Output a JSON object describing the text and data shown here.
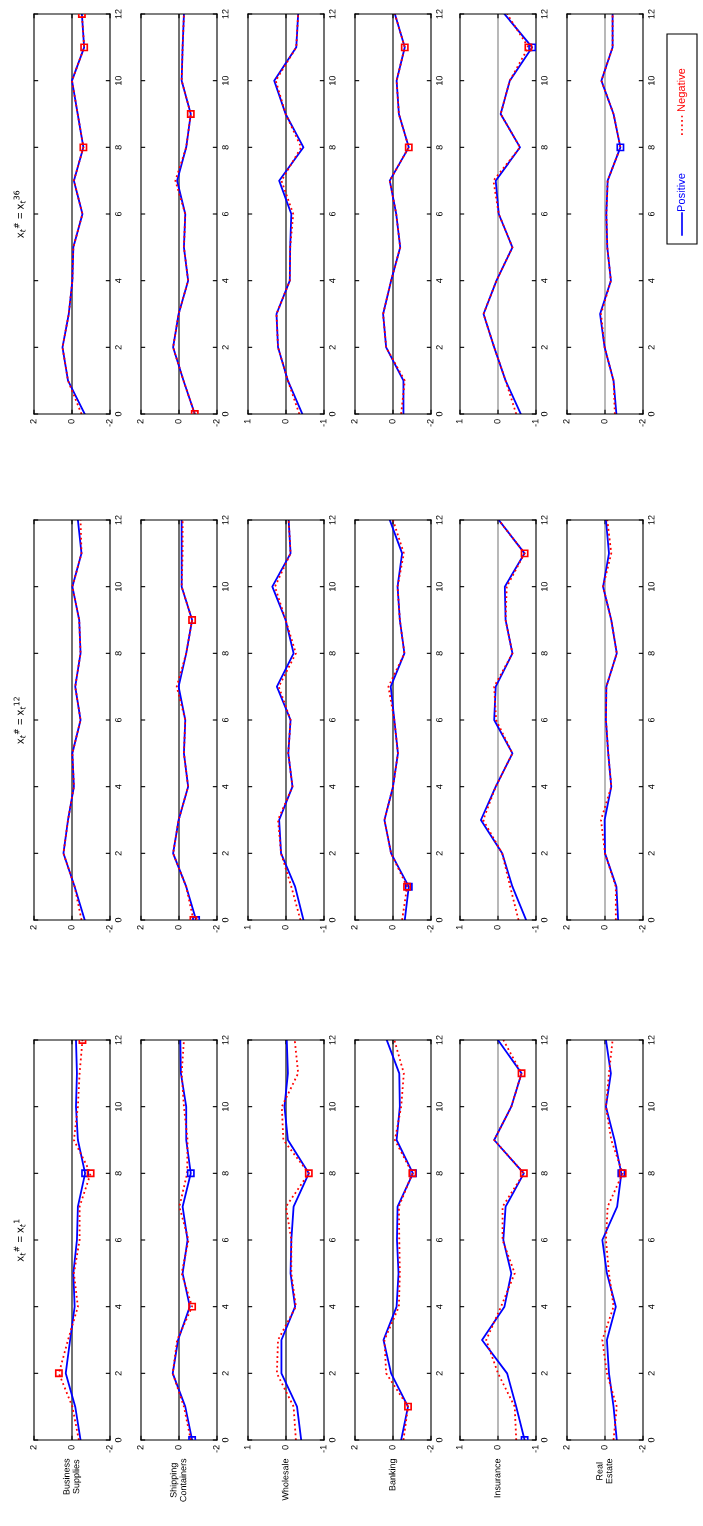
{
  "chart_data": [
    {
      "type": "line",
      "title": "x$_{t}$$^{#}$ = x$_{t}$$^{36}$",
      "xlim": [
        2,
        -2
      ],
      "xticks": [
        -2,
        0,
        2
      ],
      "ylim": [
        0,
        12
      ],
      "yticks": [
        0,
        2,
        4,
        6,
        8,
        10,
        12
      ],
      "ref_lines": [
        {
          "axis": "x",
          "value": 0,
          "color": "#000000"
        }
      ],
      "series": [
        {
          "color": "#0000ff",
          "line_style": "solid",
          "x": [
            -0.67,
            0.21,
            0.5,
            0.17,
            -0.02,
            -0.07,
            -0.55,
            -0.1,
            -0.6,
            -0.3,
            0,
            -0.64,
            -0.52
          ],
          "values": [
            0,
            1,
            2,
            3,
            4,
            5,
            6,
            7,
            8,
            9,
            10,
            11,
            12
          ]
        },
        {
          "color": "#ff0000",
          "line_style": "dotted",
          "x": [
            -0.5,
            0.21,
            0.5,
            0.17,
            -0.02,
            -0.07,
            -0.55,
            -0.1,
            -0.6,
            -0.3,
            0,
            -0.64,
            -0.52
          ],
          "values": [
            0,
            1,
            2,
            3,
            4,
            5,
            6,
            7,
            8,
            9,
            10,
            11,
            12
          ]
        },
        {
          "type": "scatter",
          "marker": "square",
          "color": "#ff0000",
          "x": [
            -0.6,
            -0.64,
            -0.52
          ],
          "values": [
            8,
            11,
            12
          ]
        }
      ]
    },
    {
      "type": "line",
      "xlim": [
        2,
        -2
      ],
      "xticks": [
        -2,
        0,
        2
      ],
      "ylim": [
        0,
        12
      ],
      "yticks": [
        0,
        2,
        4,
        6,
        8,
        10,
        12
      ],
      "ref_lines": [
        {
          "axis": "x",
          "value": 0,
          "color": "#000000"
        }
      ],
      "series": [
        {
          "color": "#0000ff",
          "line_style": "solid",
          "x": [
            -0.83,
            -0.24,
            0.31,
            0.02,
            -0.48,
            -0.26,
            -0.33,
            0.1,
            -0.38,
            -0.62,
            -0.14,
            -0.19,
            -0.26
          ],
          "values": [
            0,
            1,
            2,
            3,
            4,
            5,
            6,
            7,
            8,
            9,
            10,
            11,
            12
          ]
        },
        {
          "color": "#ff0000",
          "line_style": "dotted",
          "x": [
            -0.83,
            -0.24,
            0.31,
            0.02,
            -0.48,
            -0.26,
            -0.33,
            0.19,
            -0.38,
            -0.62,
            -0.14,
            -0.19,
            -0.26
          ],
          "values": [
            0,
            1,
            2,
            3,
            4,
            5,
            6,
            7,
            8,
            9,
            10,
            11,
            12
          ]
        },
        {
          "type": "scatter",
          "marker": "square",
          "color": "#ff0000",
          "x": [
            -0.83,
            -0.62
          ],
          "values": [
            0,
            9
          ]
        }
      ]
    },
    {
      "type": "line",
      "xlim": [
        1,
        -1
      ],
      "xticks": [
        -1,
        0,
        1
      ],
      "ylim": [
        0,
        12
      ],
      "yticks": [
        0,
        2,
        4,
        6,
        8,
        10,
        12
      ],
      "ref_lines": [
        {
          "axis": "x",
          "value": 0,
          "color": "#000000"
        }
      ],
      "series": [
        {
          "color": "#0000ff",
          "line_style": "solid",
          "x": [
            -0.43,
            -0.05,
            0.21,
            0.25,
            -0.1,
            -0.11,
            -0.14,
            0.18,
            -0.46,
            0.01,
            0.31,
            -0.27,
            -0.32
          ],
          "values": [
            0,
            1,
            2,
            3,
            4,
            5,
            6,
            7,
            8,
            9,
            10,
            11,
            12
          ]
        },
        {
          "color": "#ff0000",
          "line_style": "dotted",
          "x": [
            -0.35,
            -0.05,
            0.21,
            0.25,
            -0.1,
            -0.11,
            -0.19,
            0.12,
            -0.4,
            0.01,
            0.27,
            -0.27,
            -0.32
          ],
          "values": [
            0,
            1,
            2,
            3,
            4,
            5,
            6,
            7,
            8,
            9,
            10,
            11,
            12
          ]
        }
      ]
    },
    {
      "type": "line",
      "xlim": [
        2,
        -2
      ],
      "xticks": [
        -2,
        0,
        2
      ],
      "ylim": [
        0,
        12
      ],
      "yticks": [
        0,
        2,
        4,
        6,
        8,
        10,
        12
      ],
      "ref_lines": [
        {
          "axis": "x",
          "value": 0,
          "color": "#000000"
        }
      ],
      "series": [
        {
          "color": "#0000ff",
          "line_style": "solid",
          "x": [
            -0.55,
            -0.55,
            0.36,
            0.52,
            0.1,
            -0.38,
            -0.17,
            0.17,
            -0.83,
            -0.31,
            -0.19,
            -0.62,
            -0.1
          ],
          "values": [
            0,
            1,
            2,
            3,
            4,
            5,
            6,
            7,
            8,
            9,
            10,
            11,
            12
          ]
        },
        {
          "color": "#ff0000",
          "line_style": "dotted",
          "x": [
            -0.43,
            -0.62,
            0.36,
            0.52,
            0.1,
            -0.38,
            -0.17,
            0.17,
            -0.83,
            -0.31,
            -0.19,
            -0.62,
            -0.1
          ],
          "values": [
            0,
            1,
            2,
            3,
            4,
            5,
            6,
            7,
            8,
            9,
            10,
            11,
            12
          ]
        },
        {
          "type": "scatter",
          "marker": "square",
          "color": "#ff0000",
          "x": [
            -0.83,
            -0.62
          ],
          "values": [
            8,
            11
          ]
        }
      ]
    },
    {
      "type": "line",
      "xlim": [
        1,
        -1
      ],
      "xticks": [
        -1,
        0,
        1
      ],
      "ylim": [
        0,
        12
      ],
      "yticks": [
        0,
        2,
        4,
        6,
        8,
        10,
        12
      ],
      "ref_lines": [
        {
          "axis": "x",
          "value": 0,
          "color": "#808080"
        }
      ],
      "series": [
        {
          "color": "#0000ff",
          "line_style": "solid",
          "x": [
            -0.6,
            -0.2,
            0.1,
            0.38,
            0.04,
            -0.38,
            -0.02,
            0.06,
            -0.58,
            -0.07,
            -0.31,
            -0.9,
            -0.17
          ],
          "values": [
            0,
            1,
            2,
            3,
            4,
            5,
            6,
            7,
            8,
            9,
            10,
            11,
            12
          ]
        },
        {
          "color": "#ff0000",
          "line_style": "dotted",
          "x": [
            -0.48,
            -0.2,
            0.1,
            0.38,
            0.04,
            -0.38,
            -0.02,
            0.12,
            -0.58,
            -0.07,
            -0.31,
            -0.8,
            -0.24
          ],
          "values": [
            0,
            1,
            2,
            3,
            4,
            5,
            6,
            7,
            8,
            9,
            10,
            11,
            12
          ]
        },
        {
          "type": "scatter",
          "marker": "square",
          "color": "#0000ff",
          "x": [
            -0.9
          ],
          "values": [
            11
          ]
        },
        {
          "type": "scatter",
          "marker": "square",
          "color": "#ff0000",
          "x": [
            -0.8
          ],
          "values": [
            11
          ]
        }
      ]
    },
    {
      "type": "line",
      "legend": "right",
      "xlim": [
        2,
        -2
      ],
      "xticks": [
        -2,
        0,
        2
      ],
      "ylim": [
        0,
        12
      ],
      "yticks": [
        0,
        2,
        4,
        6,
        8,
        10,
        12
      ],
      "ref_lines": [
        {
          "axis": "x",
          "value": 0,
          "color": "#808080"
        }
      ],
      "series": [
        {
          "name": "Positive",
          "color": "#0000ff",
          "line_style": "solid",
          "x": [
            -0.6,
            -0.45,
            0.02,
            0.26,
            -0.31,
            -0.12,
            -0.07,
            -0.14,
            -0.81,
            -0.45,
            0.19,
            -0.4,
            -0.4
          ],
          "values": [
            0,
            1,
            2,
            3,
            4,
            5,
            6,
            7,
            8,
            9,
            10,
            11,
            12
          ]
        },
        {
          "name": "Negative",
          "color": "#ff0000",
          "line_style": "dotted",
          "x": [
            -0.52,
            -0.45,
            0.02,
            0.21,
            -0.31,
            -0.12,
            -0.07,
            -0.14,
            -0.81,
            -0.45,
            0.19,
            -0.4,
            -0.4
          ],
          "values": [
            0,
            1,
            2,
            3,
            4,
            5,
            6,
            7,
            8,
            9,
            10,
            11,
            12
          ]
        },
        {
          "type": "scatter",
          "marker": "square",
          "color": "#0000ff",
          "x": [
            -0.81
          ],
          "values": [
            8
          ]
        }
      ]
    },
    {
      "type": "line",
      "title": "x$_{t}$$^{#}$ = x$_{t}$$^{12}$",
      "xlim": [
        2,
        -2
      ],
      "xticks": [
        -2,
        0,
        2
      ],
      "ylim": [
        0,
        12
      ],
      "yticks": [
        0,
        2,
        4,
        6,
        8,
        10,
        12
      ],
      "ref_lines": [
        {
          "axis": "x",
          "value": 0,
          "color": "#000000"
        }
      ],
      "series": [
        {
          "color": "#0000ff",
          "line_style": "solid",
          "x": [
            -0.67,
            -0.14,
            0.45,
            0.21,
            -0.1,
            -0.02,
            -0.45,
            -0.17,
            -0.45,
            -0.38,
            -0.02,
            -0.5,
            -0.31
          ],
          "values": [
            0,
            1,
            2,
            3,
            4,
            5,
            6,
            7,
            8,
            9,
            10,
            11,
            12
          ]
        },
        {
          "color": "#ff0000",
          "line_style": "dotted",
          "x": [
            -0.5,
            -0.14,
            0.45,
            0.21,
            -0.1,
            -0.02,
            -0.45,
            -0.17,
            -0.45,
            -0.38,
            -0.02,
            -0.5,
            -0.45
          ],
          "values": [
            0,
            1,
            2,
            3,
            4,
            5,
            6,
            7,
            8,
            9,
            10,
            11,
            12
          ]
        }
      ]
    },
    {
      "type": "line",
      "xlim": [
        2,
        -2
      ],
      "xticks": [
        -2,
        0,
        2
      ],
      "ylim": [
        0,
        12
      ],
      "yticks": [
        0,
        2,
        4,
        6,
        8,
        10,
        12
      ],
      "ref_lines": [
        {
          "axis": "x",
          "value": 0,
          "color": "#000000"
        }
      ],
      "series": [
        {
          "color": "#0000ff",
          "line_style": "solid",
          "x": [
            -0.9,
            -0.38,
            0.31,
            0.02,
            -0.48,
            -0.26,
            -0.33,
            0.02,
            -0.38,
            -0.69,
            -0.14,
            -0.14,
            -0.14
          ],
          "values": [
            0,
            1,
            2,
            3,
            4,
            5,
            6,
            7,
            8,
            9,
            10,
            11,
            12
          ]
        },
        {
          "color": "#ff0000",
          "line_style": "dotted",
          "x": [
            -0.76,
            -0.38,
            0.31,
            0.02,
            -0.48,
            -0.26,
            -0.33,
            0.12,
            -0.38,
            -0.69,
            -0.14,
            -0.19,
            -0.19
          ],
          "values": [
            0,
            1,
            2,
            3,
            4,
            5,
            6,
            7,
            8,
            9,
            10,
            11,
            12
          ]
        },
        {
          "type": "scatter",
          "marker": "square",
          "color": "#0000ff",
          "x": [
            -0.9
          ],
          "values": [
            0
          ]
        },
        {
          "type": "scatter",
          "marker": "square",
          "color": "#ff0000",
          "x": [
            -0.76,
            -0.69
          ],
          "values": [
            0,
            9
          ]
        }
      ]
    },
    {
      "type": "line",
      "xlim": [
        1,
        -1
      ],
      "xticks": [
        -1,
        0,
        1
      ],
      "ylim": [
        0,
        12
      ],
      "yticks": [
        0,
        2,
        4,
        6,
        8,
        10,
        12
      ],
      "ref_lines": [
        {
          "axis": "x",
          "value": 0,
          "color": "#000000"
        }
      ],
      "series": [
        {
          "color": "#0000ff",
          "line_style": "solid",
          "x": [
            -0.46,
            -0.24,
            0.13,
            0.18,
            -0.17,
            -0.06,
            -0.12,
            0.24,
            -0.2,
            0.01,
            0.36,
            -0.12,
            -0.07
          ],
          "values": [
            0,
            1,
            2,
            3,
            4,
            5,
            6,
            7,
            8,
            9,
            10,
            11,
            12
          ]
        },
        {
          "color": "#ff0000",
          "line_style": "dotted",
          "x": [
            -0.38,
            -0.14,
            0.13,
            0.21,
            -0.17,
            -0.06,
            -0.12,
            0.19,
            -0.26,
            0.01,
            0.29,
            -0.12,
            -0.07
          ],
          "values": [
            0,
            1,
            2,
            3,
            4,
            5,
            6,
            7,
            8,
            9,
            10,
            11,
            12
          ]
        }
      ]
    },
    {
      "type": "line",
      "xlim": [
        2,
        -2
      ],
      "xticks": [
        -2,
        0,
        2
      ],
      "ylim": [
        0,
        12
      ],
      "yticks": [
        0,
        2,
        4,
        6,
        8,
        10,
        12
      ],
      "ref_lines": [
        {
          "axis": "x",
          "value": 0,
          "color": "#000000"
        }
      ],
      "series": [
        {
          "color": "#0000ff",
          "line_style": "solid",
          "x": [
            -0.62,
            -0.83,
            0.1,
            0.45,
            0,
            -0.26,
            -0.07,
            0.12,
            -0.6,
            -0.36,
            -0.24,
            -0.48,
            0.17
          ],
          "values": [
            0,
            1,
            2,
            3,
            4,
            5,
            6,
            7,
            8,
            9,
            10,
            11,
            12
          ]
        },
        {
          "color": "#ff0000",
          "line_style": "dotted",
          "x": [
            -0.48,
            -0.74,
            0.1,
            0.45,
            0,
            -0.26,
            -0.07,
            0.24,
            -0.6,
            -0.36,
            -0.24,
            -0.57,
            0
          ],
          "values": [
            0,
            1,
            2,
            3,
            4,
            5,
            6,
            7,
            8,
            9,
            10,
            11,
            12
          ]
        },
        {
          "type": "scatter",
          "marker": "square",
          "color": "#0000ff",
          "x": [
            -0.83
          ],
          "values": [
            1
          ]
        },
        {
          "type": "scatter",
          "marker": "square",
          "color": "#ff0000",
          "x": [
            -0.74
          ],
          "values": [
            1
          ]
        }
      ]
    },
    {
      "type": "line",
      "xlim": [
        1,
        -1
      ],
      "xticks": [
        -1,
        0,
        1
      ],
      "ylim": [
        0,
        12
      ],
      "yticks": [
        0,
        2,
        4,
        6,
        8,
        10,
        12
      ],
      "ref_lines": [
        {
          "axis": "x",
          "value": 0,
          "color": "#808080"
        }
      ],
      "series": [
        {
          "color": "#0000ff",
          "line_style": "solid",
          "x": [
            -0.74,
            -0.38,
            -0.11,
            0.45,
            0.06,
            -0.38,
            0.1,
            0.06,
            -0.38,
            -0.2,
            -0.18,
            -0.7,
            -0.02
          ],
          "values": [
            0,
            1,
            2,
            3,
            4,
            5,
            6,
            7,
            8,
            9,
            10,
            11,
            12
          ]
        },
        {
          "color": "#ff0000",
          "line_style": "dotted",
          "x": [
            -0.54,
            -0.32,
            -0.11,
            0.39,
            0.06,
            -0.38,
            0.05,
            0.1,
            -0.38,
            -0.2,
            -0.23,
            -0.7,
            -0.02
          ],
          "values": [
            0,
            1,
            2,
            3,
            4,
            5,
            6,
            7,
            8,
            9,
            10,
            11,
            12
          ]
        },
        {
          "type": "scatter",
          "marker": "square",
          "color": "#ff0000",
          "x": [
            -0.7
          ],
          "values": [
            11
          ]
        }
      ]
    },
    {
      "type": "line",
      "xlim": [
        2,
        -2
      ],
      "xticks": [
        -2,
        0,
        2
      ],
      "ylim": [
        0,
        12
      ],
      "yticks": [
        0,
        2,
        4,
        6,
        8,
        10,
        12
      ],
      "ref_lines": [
        {
          "axis": "x",
          "value": 0,
          "color": "#808080"
        }
      ],
      "series": [
        {
          "color": "#0000ff",
          "line_style": "solid",
          "x": [
            -0.69,
            -0.6,
            0,
            0.02,
            -0.33,
            -0.17,
            -0.05,
            -0.07,
            -0.62,
            -0.33,
            0.1,
            -0.21,
            -0.05
          ],
          "values": [
            0,
            1,
            2,
            3,
            4,
            5,
            6,
            7,
            8,
            9,
            10,
            11,
            12
          ]
        },
        {
          "color": "#ff0000",
          "line_style": "dotted",
          "x": [
            -0.57,
            -0.57,
            0,
            0.21,
            -0.33,
            -0.17,
            -0.05,
            -0.07,
            -0.62,
            -0.33,
            0.1,
            -0.33,
            -0.12
          ],
          "values": [
            0,
            1,
            2,
            3,
            4,
            5,
            6,
            7,
            8,
            9,
            10,
            11,
            12
          ]
        }
      ]
    },
    {
      "type": "line",
      "title": "x$_{t}$$^{#}$ = x$_{t}$$^{1}$",
      "ylabel": "Business\nSupplies",
      "xlim": [
        2,
        -2
      ],
      "xticks": [
        -2,
        0,
        2
      ],
      "ylim": [
        0,
        12
      ],
      "yticks": [
        0,
        2,
        4,
        6,
        8,
        10,
        12
      ],
      "ref_lines": [
        {
          "axis": "x",
          "value": 0,
          "color": "#000000"
        }
      ],
      "series": [
        {
          "color": "#0000ff",
          "line_style": "solid",
          "x": [
            -0.45,
            -0.17,
            0.33,
            0.1,
            -0.14,
            -0.07,
            -0.26,
            -0.31,
            -0.69,
            -0.31,
            -0.21,
            -0.26,
            -0.21
          ],
          "values": [
            0,
            1,
            2,
            3,
            4,
            5,
            6,
            7,
            8,
            9,
            10,
            11,
            12
          ]
        },
        {
          "color": "#ff0000",
          "line_style": "dotted",
          "x": [
            -0.36,
            -0.02,
            0.69,
            0.21,
            -0.31,
            -0.1,
            -0.4,
            -0.4,
            -0.98,
            -0.1,
            -0.31,
            -0.4,
            -0.55
          ],
          "values": [
            0,
            1,
            2,
            3,
            4,
            5,
            6,
            7,
            8,
            9,
            10,
            11,
            12
          ]
        },
        {
          "type": "scatter",
          "marker": "square",
          "color": "#0000ff",
          "x": [
            -0.69
          ],
          "values": [
            8
          ]
        },
        {
          "type": "scatter",
          "marker": "square",
          "color": "#ff0000",
          "x": [
            0.69,
            -0.98,
            -0.55
          ],
          "values": [
            2,
            8,
            12
          ]
        }
      ]
    },
    {
      "type": "line",
      "ylabel": "Shipping\nContainers",
      "xlim": [
        2,
        -2
      ],
      "xticks": [
        -2,
        0,
        2
      ],
      "ylim": [
        0,
        12
      ],
      "yticks": [
        0,
        2,
        4,
        6,
        8,
        10,
        12
      ],
      "ref_lines": [
        {
          "axis": "x",
          "value": 0,
          "color": "#000000"
        }
      ],
      "series": [
        {
          "color": "#0000ff",
          "line_style": "solid",
          "x": [
            -0.69,
            -0.33,
            0.33,
            0.05,
            -0.57,
            -0.19,
            -0.45,
            -0.19,
            -0.62,
            -0.38,
            -0.38,
            -0.1,
            -0.07
          ],
          "values": [
            0,
            1,
            2,
            3,
            4,
            5,
            6,
            7,
            8,
            9,
            10,
            11,
            12
          ]
        },
        {
          "color": "#ff0000",
          "line_style": "dotted",
          "x": [
            -0.62,
            -0.26,
            0.33,
            0.1,
            -0.69,
            -0.14,
            -0.5,
            -0.02,
            -0.43,
            -0.45,
            -0.26,
            -0.14,
            -0.26
          ],
          "values": [
            0,
            1,
            2,
            3,
            4,
            5,
            6,
            7,
            8,
            9,
            10,
            11,
            12
          ]
        },
        {
          "type": "scatter",
          "marker": "square",
          "color": "#0000ff",
          "x": [
            -0.69,
            -0.62
          ],
          "values": [
            0,
            8
          ]
        },
        {
          "type": "scatter",
          "marker": "square",
          "color": "#ff0000",
          "x": [
            -0.69
          ],
          "values": [
            4
          ]
        }
      ]
    },
    {
      "type": "line",
      "ylabel": "Wholesale",
      "xlim": [
        1,
        -1
      ],
      "xticks": [
        -1,
        0,
        1
      ],
      "ylim": [
        0,
        12
      ],
      "yticks": [
        0,
        2,
        4,
        6,
        8,
        10,
        12
      ],
      "ref_lines": [
        {
          "axis": "x",
          "value": 0,
          "color": "#000000"
        }
      ],
      "series": [
        {
          "color": "#0000ff",
          "line_style": "solid",
          "x": [
            -0.4,
            -0.29,
            0.12,
            0.12,
            -0.24,
            -0.12,
            -0.14,
            -0.2,
            -0.6,
            -0.05,
            0.04,
            -0.05,
            -0.02
          ],
          "values": [
            0,
            1,
            2,
            3,
            4,
            5,
            6,
            7,
            8,
            9,
            10,
            11,
            12
          ]
        },
        {
          "color": "#ff0000",
          "line_style": "dotted",
          "x": [
            -0.26,
            -0.2,
            0.24,
            0.21,
            -0.26,
            -0.14,
            -0.14,
            0,
            -0.6,
            0.07,
            0.11,
            -0.32,
            -0.23
          ],
          "values": [
            0,
            1,
            2,
            3,
            4,
            5,
            6,
            7,
            8,
            9,
            10,
            11,
            12
          ]
        },
        {
          "type": "scatter",
          "marker": "square",
          "color": "#ff0000",
          "x": [
            -0.6
          ],
          "values": [
            8
          ]
        }
      ]
    },
    {
      "type": "line",
      "ylabel": "Banking",
      "xlim": [
        2,
        -2
      ],
      "xticks": [
        -2,
        0,
        2
      ],
      "ylim": [
        0,
        12
      ],
      "yticks": [
        0,
        2,
        4,
        6,
        8,
        10,
        12
      ],
      "ref_lines": [
        {
          "axis": "x",
          "value": 0,
          "color": "#000000"
        }
      ],
      "series": [
        {
          "color": "#0000ff",
          "line_style": "solid",
          "x": [
            -0.43,
            -0.79,
            0.1,
            0.5,
            -0.19,
            -0.29,
            -0.21,
            -0.24,
            -1.05,
            -0.19,
            -0.36,
            -0.33,
            0.33
          ],
          "values": [
            0,
            1,
            2,
            3,
            4,
            5,
            6,
            7,
            8,
            9,
            10,
            11,
            12
          ]
        },
        {
          "color": "#ff0000",
          "line_style": "dotted",
          "x": [
            -0.55,
            -0.79,
            0.36,
            0.45,
            -0.31,
            -0.36,
            -0.33,
            -0.31,
            -1.02,
            -0.1,
            -0.43,
            -0.57,
            -0.07
          ],
          "values": [
            0,
            1,
            2,
            3,
            4,
            5,
            6,
            7,
            8,
            9,
            10,
            11,
            12
          ]
        },
        {
          "type": "scatter",
          "marker": "square",
          "color": "#0000ff",
          "x": [
            -1.05
          ],
          "values": [
            8
          ]
        },
        {
          "type": "scatter",
          "marker": "square",
          "color": "#ff0000",
          "x": [
            -0.79,
            -1.02
          ],
          "values": [
            1,
            8
          ]
        }
      ]
    },
    {
      "type": "line",
      "ylabel": "Insurance",
      "xlim": [
        1,
        -1
      ],
      "xticks": [
        -1,
        0,
        1
      ],
      "ylim": [
        0,
        12
      ],
      "yticks": [
        0,
        2,
        4,
        6,
        8,
        10,
        12
      ],
      "ref_lines": [
        {
          "axis": "x",
          "value": 0,
          "color": "#808080"
        }
      ],
      "series": [
        {
          "color": "#0000ff",
          "line_style": "solid",
          "x": [
            -0.7,
            -0.48,
            -0.24,
            0.42,
            -0.17,
            -0.35,
            -0.14,
            -0.2,
            -0.68,
            0.1,
            -0.35,
            -0.62,
            0
          ],
          "values": [
            0,
            1,
            2,
            3,
            4,
            5,
            6,
            7,
            8,
            9,
            10,
            11,
            12
          ]
        },
        {
          "color": "#ff0000",
          "line_style": "dotted",
          "x": [
            -0.48,
            -0.44,
            0,
            0.31,
            -0.08,
            -0.44,
            -0.12,
            -0.12,
            -0.68,
            0.1,
            -0.35,
            -0.62,
            -0.14
          ],
          "values": [
            0,
            1,
            2,
            3,
            4,
            5,
            6,
            7,
            8,
            9,
            10,
            11,
            12
          ]
        },
        {
          "type": "scatter",
          "marker": "square",
          "color": "#0000ff",
          "x": [
            -0.7
          ],
          "values": [
            0
          ]
        },
        {
          "type": "scatter",
          "marker": "square",
          "color": "#ff0000",
          "x": [
            -0.68,
            -0.62
          ],
          "values": [
            8,
            11
          ]
        }
      ]
    },
    {
      "type": "line",
      "ylabel": "Real\nEstate",
      "xlim": [
        2,
        -2
      ],
      "xticks": [
        -2,
        0,
        2
      ],
      "ylim": [
        0,
        12
      ],
      "yticks": [
        0,
        2,
        4,
        6,
        8,
        10,
        12
      ],
      "ref_lines": [
        {
          "axis": "x",
          "value": 0,
          "color": "#808080"
        }
      ],
      "series": [
        {
          "color": "#0000ff",
          "line_style": "solid",
          "x": [
            -0.62,
            -0.45,
            -0.21,
            -0.1,
            -0.57,
            -0.1,
            0.14,
            -0.64,
            -0.86,
            -0.5,
            -0.05,
            -0.31,
            -0.05
          ],
          "values": [
            0,
            1,
            2,
            3,
            4,
            5,
            6,
            7,
            8,
            9,
            10,
            11,
            12
          ]
        },
        {
          "color": "#ff0000",
          "line_style": "dotted",
          "x": [
            -0.45,
            -0.62,
            -0.1,
            0.14,
            -0.45,
            -0.21,
            -0.05,
            -0.14,
            -0.93,
            -0.33,
            -0.05,
            -0.21,
            -0.4
          ],
          "values": [
            0,
            1,
            2,
            3,
            4,
            5,
            6,
            7,
            8,
            9,
            10,
            11,
            12
          ]
        },
        {
          "type": "scatter",
          "marker": "square",
          "color": "#0000ff",
          "x": [
            -0.86
          ],
          "values": [
            8
          ]
        },
        {
          "type": "scatter",
          "marker": "square",
          "color": "#ff0000",
          "x": [
            -0.93
          ],
          "values": [
            8
          ]
        }
      ]
    }
  ]
}
